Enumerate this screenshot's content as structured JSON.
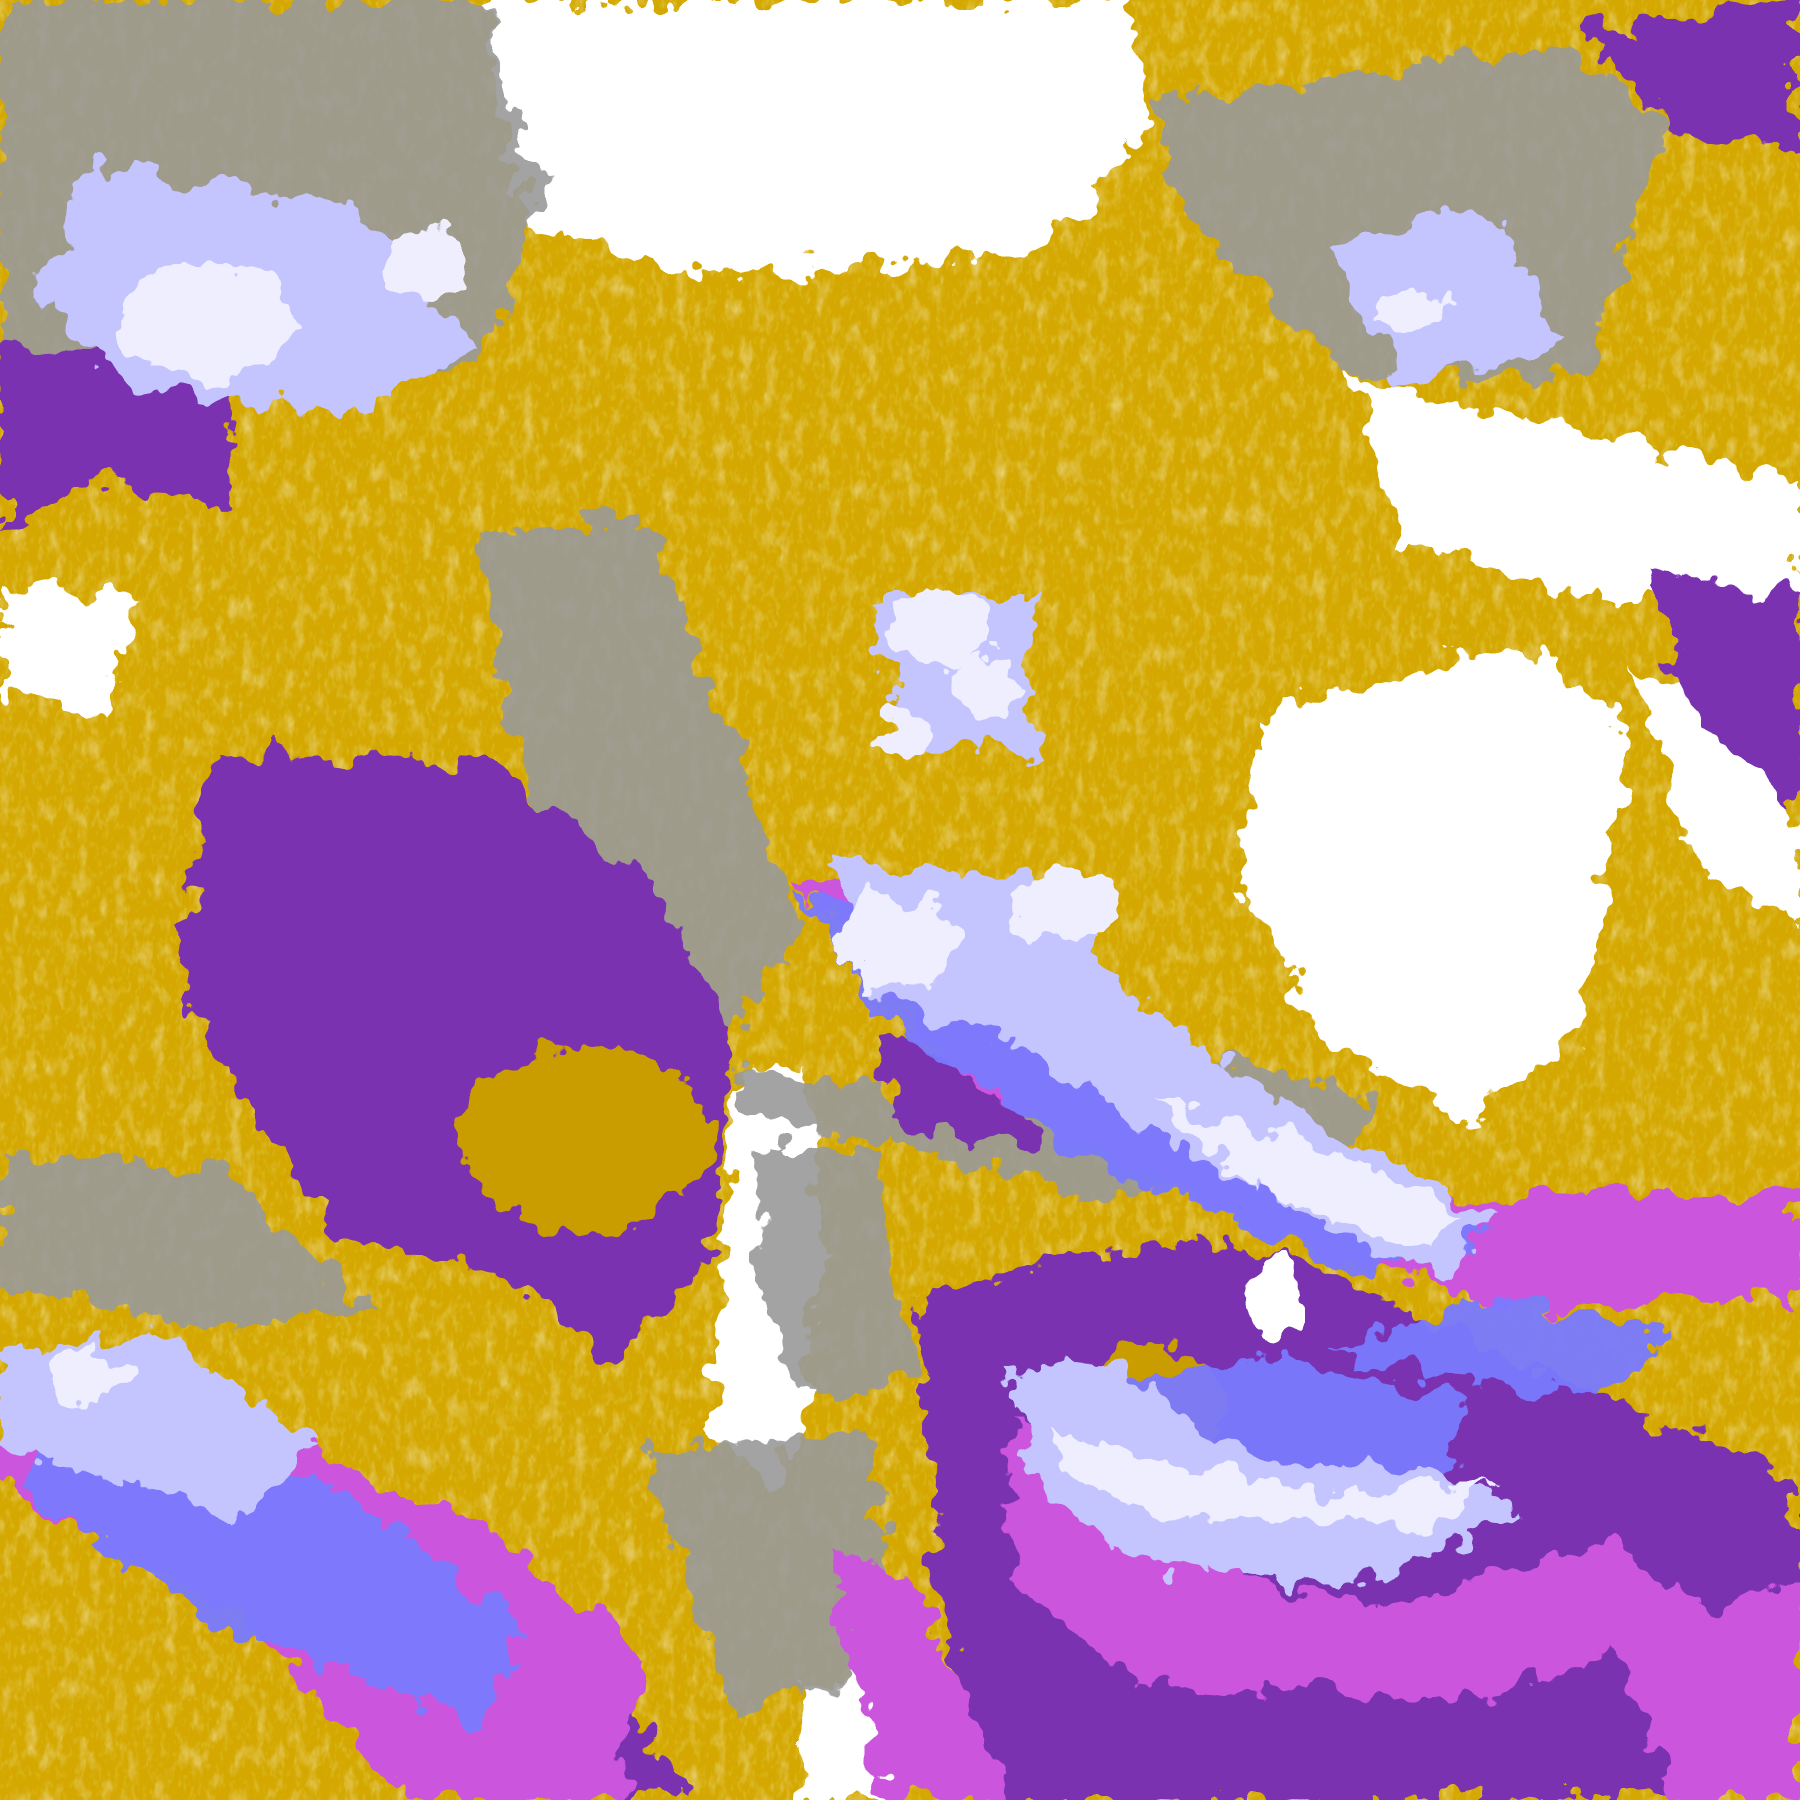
{
  "image": {
    "kind": "false-color satellite cloud imagery",
    "palette": {
      "clear": "#ffffff",
      "gold": "#d4a800",
      "dark_gold": "#b8890a",
      "gray": "#9a9a9a",
      "light_gray": "#bdbdbd",
      "pale_lavender": "#eeeeff",
      "lavender": "#c4c4ff",
      "blue_violet": "#7a7aff",
      "magenta": "#cc55dd",
      "purple": "#7a33b0"
    }
  }
}
